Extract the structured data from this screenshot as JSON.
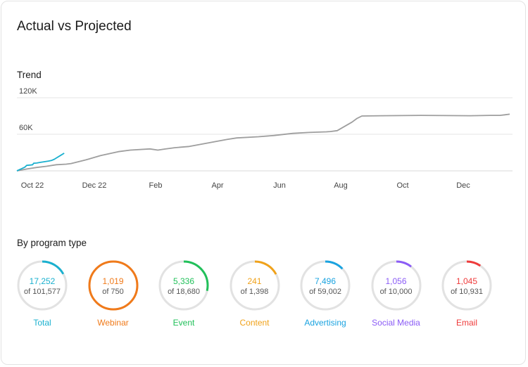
{
  "title": "Actual vs Projected",
  "trend": {
    "label": "Trend"
  },
  "chart_data": {
    "type": "line",
    "title": "Trend",
    "x_ticks": [
      "Oct 22",
      "Dec 22",
      "Feb",
      "Apr",
      "Jun",
      "Aug",
      "Oct",
      "Dec"
    ],
    "y_ticks": [
      "120K",
      "60K"
    ],
    "ylim": [
      0,
      120000
    ],
    "grid": true,
    "series": [
      {
        "color": "#1ab0cf",
        "points": [
          [
            0,
            0
          ],
          [
            4,
            3000
          ],
          [
            8,
            6000
          ],
          [
            10,
            9000
          ],
          [
            14,
            9600
          ],
          [
            16,
            10000
          ],
          [
            17,
            12500
          ],
          [
            20,
            12800
          ],
          [
            24,
            14000
          ],
          [
            28,
            15000
          ],
          [
            32,
            16000
          ],
          [
            35,
            17000
          ],
          [
            38,
            19000
          ],
          [
            41,
            22000
          ],
          [
            44,
            25000
          ],
          [
            48,
            29000
          ]
        ]
      },
      {
        "color": "#9e9e9e",
        "points": [
          [
            0,
            0
          ],
          [
            10,
            3000
          ],
          [
            20,
            5500
          ],
          [
            30,
            7500
          ],
          [
            40,
            10000
          ],
          [
            50,
            11000
          ],
          [
            55,
            12000
          ],
          [
            70,
            18000
          ],
          [
            85,
            25000
          ],
          [
            103,
            31500
          ],
          [
            115,
            34000
          ],
          [
            135,
            36000
          ],
          [
            143,
            34000
          ],
          [
            150,
            35800
          ],
          [
            160,
            38000
          ],
          [
            175,
            40000
          ],
          [
            188,
            44000
          ],
          [
            200,
            47500
          ],
          [
            213,
            51500
          ],
          [
            223,
            54000
          ],
          [
            245,
            56000
          ],
          [
            261,
            58000
          ],
          [
            280,
            61500
          ],
          [
            296,
            63000
          ],
          [
            314,
            64000
          ],
          [
            318,
            64500
          ],
          [
            325,
            66000
          ],
          [
            340,
            80000
          ],
          [
            345,
            86000
          ],
          [
            350,
            90000
          ],
          [
            370,
            90500
          ],
          [
            410,
            91000
          ],
          [
            460,
            90500
          ],
          [
            480,
            91000
          ],
          [
            490,
            91000
          ],
          [
            495,
            92000
          ],
          [
            500,
            93000
          ]
        ]
      }
    ]
  },
  "programs": {
    "label": "By program type",
    "items": [
      {
        "name": "Total",
        "value": "17,252",
        "of": "of 101,577",
        "fraction": 0.17,
        "color": "#1ab0cf"
      },
      {
        "name": "Webinar",
        "value": "1,019",
        "of": "of 750",
        "fraction": 1.0,
        "color": "#f07a1a"
      },
      {
        "name": "Event",
        "value": "5,336",
        "of": "of 18,680",
        "fraction": 0.286,
        "color": "#21c05a"
      },
      {
        "name": "Content",
        "value": "241",
        "of": "of 1,398",
        "fraction": 0.172,
        "color": "#f0a21a"
      },
      {
        "name": "Advertising",
        "value": "7,496",
        "of": "of 59,002",
        "fraction": 0.127,
        "color": "#1aa3e0"
      },
      {
        "name": "Social Media",
        "value": "1,056",
        "of": "of 10,000",
        "fraction": 0.106,
        "color": "#8b5cf6"
      },
      {
        "name": "Email",
        "value": "1,045",
        "of": "of 10,931",
        "fraction": 0.096,
        "color": "#ef3b3b"
      }
    ]
  }
}
